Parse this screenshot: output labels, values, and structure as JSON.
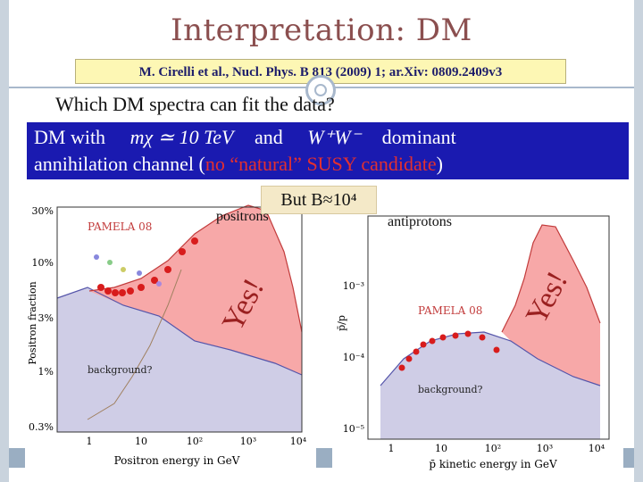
{
  "title": "Interpretation: DM",
  "citation": "M. Cirelli et al., Nucl. Phys. B 813 (2009) 1; ar.Xiv: 0809.2409v3",
  "question": "Which DM spectra can fit the data?",
  "dm_box": {
    "prefix": "DM with",
    "mass_expr": "mχ ≃ 10 TeV",
    "and": "and",
    "channel_expr": "W⁺W⁻",
    "dominant": "dominant",
    "line2_pre": "annihilation channel (",
    "line2_red": "no “natural” SUSY candidate",
    "line2_post": ")"
  },
  "but_box": "But B≈10⁴",
  "labels": {
    "positrons": "positrons",
    "antiprotons": "antiprotons",
    "yes_left": "Yes!",
    "yes_right": "Yes!"
  },
  "positron_plot": {
    "pamela": "PAMELA 08",
    "background": "background?",
    "ylabel": "Positron fraction",
    "xlabel": "Positron energy in GeV",
    "yticks": [
      "30%",
      "10%",
      "3%",
      "1%",
      "0.3%"
    ],
    "xticks": [
      "1",
      "10",
      "10²",
      "10³",
      "10⁴"
    ]
  },
  "antiproton_plot": {
    "pamela": "PAMELA 08",
    "background": "background?",
    "ylabel": "p̄/p",
    "xlabel": "p̄ kinetic energy in GeV",
    "yticks": [
      "10⁻³",
      "10⁻⁴",
      "10⁻⁵"
    ],
    "xticks": [
      "1",
      "10",
      "10²",
      "10³",
      "10⁴"
    ]
  },
  "colors": {
    "signal_fill": "#f7a8a8",
    "background_fill": "#cfcde6",
    "data_points": "#d81c1c",
    "title": "#8b4f4f",
    "box_blue": "#1a1ab0"
  }
}
